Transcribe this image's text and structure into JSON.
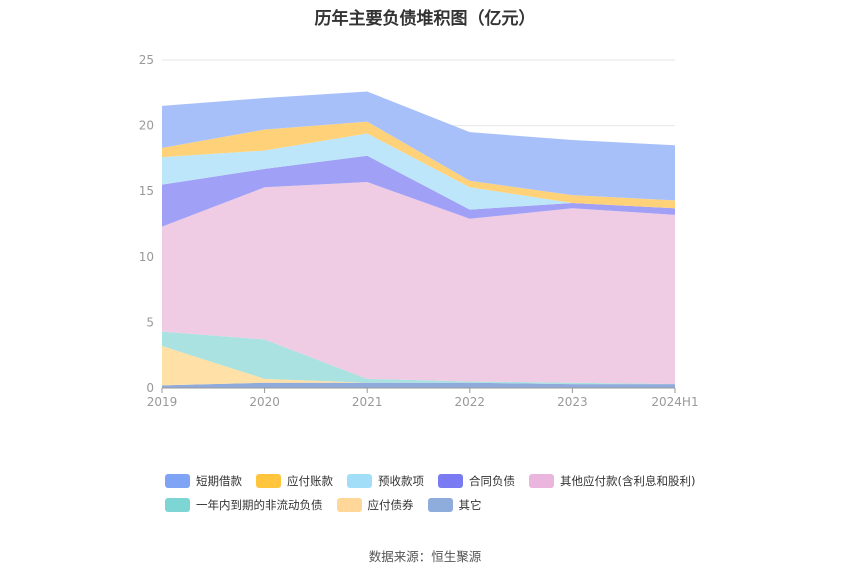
{
  "chart_data": {
    "type": "area",
    "stacked": true,
    "title": "历年主要负债堆积图（亿元）",
    "x": [
      "2019",
      "2020",
      "2021",
      "2022",
      "2023",
      "2024H1"
    ],
    "ylim": [
      0,
      25
    ],
    "yticks": [
      0,
      5,
      10,
      15,
      20,
      25
    ],
    "grid": true,
    "legend_position": "bottom",
    "series": [
      {
        "name": "其它",
        "color": "#8FAADC",
        "values": [
          0.2,
          0.4,
          0.4,
          0.4,
          0.3,
          0.3
        ]
      },
      {
        "name": "应付债券",
        "color": "#FFE0A6",
        "values": [
          3.0,
          0.3,
          0.0,
          0.0,
          0.0,
          0.0
        ]
      },
      {
        "name": "一年内到期的非流动负债",
        "color": "#A9E2E0",
        "values": [
          1.1,
          3.0,
          0.3,
          0.1,
          0.1,
          0.0
        ]
      },
      {
        "name": "其他应付款(含利息和股利)",
        "color": "#EFCCE4",
        "values": [
          8.0,
          11.6,
          15.0,
          12.4,
          13.3,
          12.9
        ]
      },
      {
        "name": "合同负债",
        "color": "#A0A0F6",
        "values": [
          3.2,
          1.4,
          2.0,
          0.7,
          0.4,
          0.5
        ]
      },
      {
        "name": "预收款项",
        "color": "#BDE6FA",
        "values": [
          2.1,
          1.4,
          1.7,
          1.7,
          0.0,
          0.0
        ]
      },
      {
        "name": "应付账款",
        "color": "#FFD27A",
        "values": [
          0.7,
          1.6,
          0.9,
          0.5,
          0.6,
          0.6
        ]
      },
      {
        "name": "短期借款",
        "color": "#A7C0FA",
        "values": [
          3.2,
          2.4,
          2.3,
          3.7,
          4.2,
          4.2
        ]
      }
    ],
    "legend": [
      {
        "name": "短期借款",
        "color": "#7FA3F5"
      },
      {
        "name": "应付账款",
        "color": "#FFC53D"
      },
      {
        "name": "预收款项",
        "color": "#A3DEF9"
      },
      {
        "name": "合同负债",
        "color": "#7A7BF2"
      },
      {
        "name": "其他应付款(含利息和股利)",
        "color": "#EBB6DD"
      },
      {
        "name": "一年内到期的非流动负债",
        "color": "#7DD6D3"
      },
      {
        "name": "应付债券",
        "color": "#FFD799"
      },
      {
        "name": "其它",
        "color": "#8EACDC"
      }
    ],
    "source": "数据来源：恒生聚源"
  }
}
